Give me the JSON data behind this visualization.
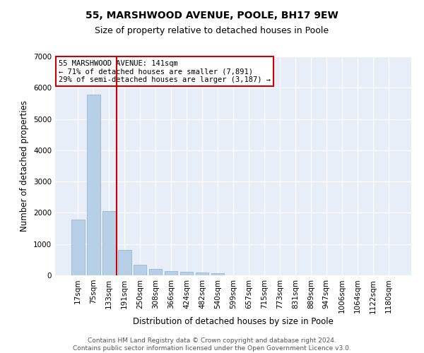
{
  "title_line1": "55, MARSHWOOD AVENUE, POOLE, BH17 9EW",
  "title_line2": "Size of property relative to detached houses in Poole",
  "xlabel": "Distribution of detached houses by size in Poole",
  "ylabel": "Number of detached properties",
  "bar_color": "#b8cfe8",
  "bar_edge_color": "#8ab0d0",
  "categories": [
    "17sqm",
    "75sqm",
    "133sqm",
    "191sqm",
    "250sqm",
    "308sqm",
    "366sqm",
    "424sqm",
    "482sqm",
    "540sqm",
    "599sqm",
    "657sqm",
    "715sqm",
    "773sqm",
    "831sqm",
    "889sqm",
    "947sqm",
    "1006sqm",
    "1064sqm",
    "1122sqm",
    "1180sqm"
  ],
  "values": [
    1780,
    5780,
    2060,
    820,
    340,
    200,
    130,
    110,
    100,
    70,
    0,
    0,
    0,
    0,
    0,
    0,
    0,
    0,
    0,
    0,
    0
  ],
  "ylim": [
    0,
    7000
  ],
  "yticks": [
    0,
    1000,
    2000,
    3000,
    4000,
    5000,
    6000,
    7000
  ],
  "annotation_box_text": "55 MARSHWOOD AVENUE: 141sqm\n← 71% of detached houses are smaller (7,891)\n29% of semi-detached houses are larger (3,187) →",
  "vline_x_index": 2,
  "vline_color": "#cc0000",
  "box_edge_color": "#cc0000",
  "background_color": "#e8eef8",
  "footer_line1": "Contains HM Land Registry data © Crown copyright and database right 2024.",
  "footer_line2": "Contains public sector information licensed under the Open Government Licence v3.0.",
  "grid_color": "#ffffff",
  "title_fontsize": 10,
  "subtitle_fontsize": 9,
  "axis_label_fontsize": 8.5,
  "tick_fontsize": 7.5,
  "annotation_fontsize": 7.5,
  "footer_fontsize": 6.5
}
